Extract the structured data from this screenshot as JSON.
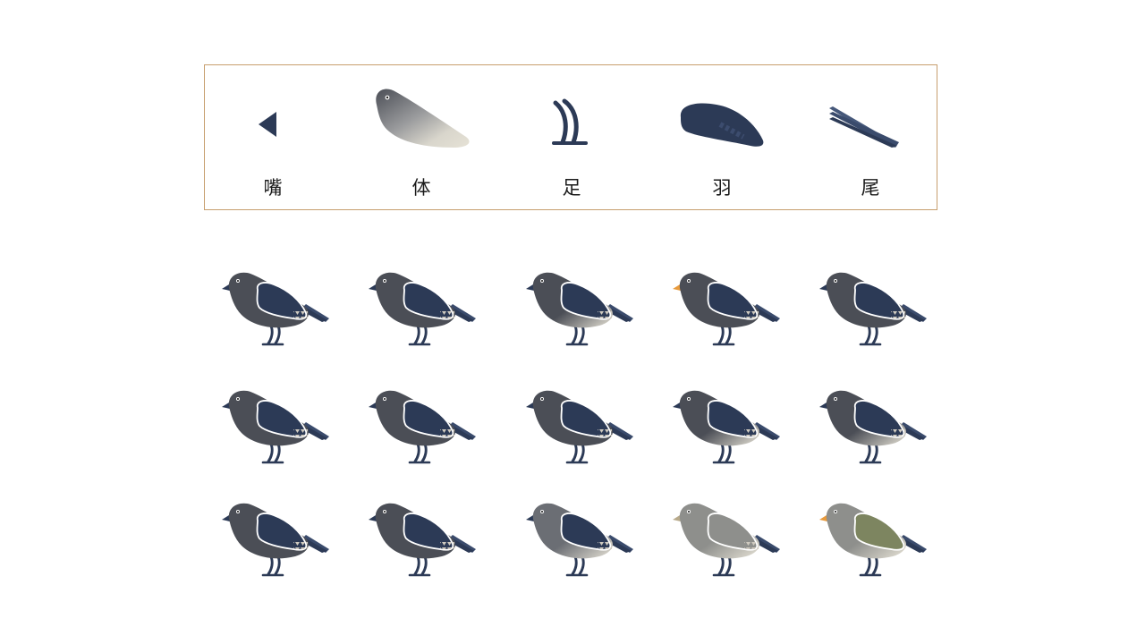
{
  "legend": {
    "items": [
      {
        "id": "beak",
        "label": "嘴",
        "icon": "beak-icon"
      },
      {
        "id": "body",
        "label": "体",
        "icon": "body-icon"
      },
      {
        "id": "feet",
        "label": "足",
        "icon": "feet-icon"
      },
      {
        "id": "wing",
        "label": "羽",
        "icon": "wing-icon"
      },
      {
        "id": "tail",
        "label": "尾",
        "icon": "tail-icon"
      }
    ]
  },
  "colors": {
    "frame": "#c79e6e",
    "navy": "#2c3a56",
    "charcoal": "#4b4e56",
    "gray": "#6b6e74",
    "cream": "#e6e2d6",
    "orange": "#e89a3c",
    "olive": "#7d8560",
    "tan": "#b7a98a"
  },
  "birds": [
    {
      "row": 1,
      "col": 1,
      "body": "#4b4e56",
      "belly": "#4b4e56",
      "beak": "#2c3a56",
      "wing": "#2c3a56",
      "spots": true
    },
    {
      "row": 1,
      "col": 2,
      "body": "#4b4e56",
      "belly": "#4b4e56",
      "beak": "#2c3a56",
      "wing": "#2c3a56",
      "spots": true
    },
    {
      "row": 1,
      "col": 3,
      "body": "#4b4e56",
      "belly": "#e6e2d6",
      "beak": "#2c3a56",
      "wing": "#2c3a56",
      "spots": true
    },
    {
      "row": 1,
      "col": 4,
      "body": "#4b4e56",
      "belly": "#4b4e56",
      "beak": "#e89a3c",
      "wing": "#2c3a56",
      "spots": true
    },
    {
      "row": 1,
      "col": 5,
      "body": "#4b4e56",
      "belly": "#4b4e56",
      "beak": "#2c3a56",
      "wing": "#2c3a56",
      "spots": true
    },
    {
      "row": 2,
      "col": 1,
      "body": "#4b4e56",
      "belly": "#4b4e56",
      "beak": "#2c3a56",
      "wing": "#2c3a56",
      "spots": true
    },
    {
      "row": 2,
      "col": 2,
      "body": "#4b4e56",
      "belly": "#4b4e56",
      "beak": "#2c3a56",
      "wing": "#2c3a56",
      "spots": true
    },
    {
      "row": 2,
      "col": 3,
      "body": "#4b4e56",
      "belly": "#4b4e56",
      "beak": "#2c3a56",
      "wing": "#2c3a56",
      "spots": true
    },
    {
      "row": 2,
      "col": 4,
      "body": "#4b4e56",
      "belly": "#e6e2d6",
      "beak": "#2c3a56",
      "wing": "#2c3a56",
      "spots": true
    },
    {
      "row": 2,
      "col": 5,
      "body": "#4b4e56",
      "belly": "#e6e2d6",
      "beak": "#2c3a56",
      "wing": "#2c3a56",
      "spots": true
    },
    {
      "row": 3,
      "col": 1,
      "body": "#4b4e56",
      "belly": "#4b4e56",
      "beak": "#2c3a56",
      "wing": "#2c3a56",
      "spots": true
    },
    {
      "row": 3,
      "col": 2,
      "body": "#4b4e56",
      "belly": "#4b4e56",
      "beak": "#2c3a56",
      "wing": "#2c3a56",
      "spots": true
    },
    {
      "row": 3,
      "col": 3,
      "body": "#6b6e74",
      "belly": "#e6e2d6",
      "beak": "#2c3a56",
      "wing": "#2c3a56",
      "spots": true
    },
    {
      "row": 3,
      "col": 4,
      "body": "#8e8f8c",
      "belly": "#e6e2d6",
      "beak": "#b7a98a",
      "wing": "#8e8f8c",
      "spots": true
    },
    {
      "row": 3,
      "col": 5,
      "body": "#8e8f8c",
      "belly": "#e6e2d6",
      "beak": "#e89a3c",
      "wing": "#7d8560",
      "spots": false
    }
  ]
}
